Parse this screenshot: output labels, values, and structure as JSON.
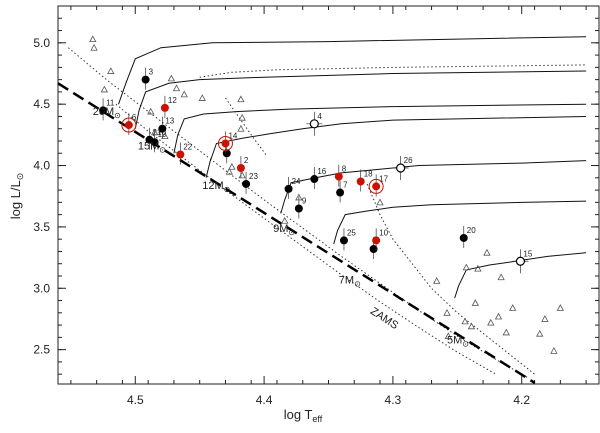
{
  "chart_data": {
    "type": "scatter",
    "xlabel": "log T",
    "xlabel_sub": "eff",
    "ylabel": "log L/L",
    "ylabel_sub": "⊙",
    "xlim": [
      4.56,
      4.14
    ],
    "ylim": [
      2.22,
      5.3
    ],
    "x_ticks": [
      4.5,
      4.4,
      4.3,
      4.2
    ],
    "x_tick_labels": [
      "4.5",
      "4.4",
      "4.3",
      "4.2"
    ],
    "y_ticks": [
      2.5,
      3.0,
      3.5,
      4.0,
      4.5,
      5.0
    ],
    "y_tick_labels": [
      "2.5",
      "3.0",
      "3.5",
      "4.0",
      "4.5",
      "5.0"
    ],
    "zams_label": "ZAMS",
    "mass_labels": [
      {
        "text": "20M",
        "sub": "⊙",
        "x": 4.533,
        "y": 4.41
      },
      {
        "text": "15M",
        "sub": "⊙",
        "x": 4.498,
        "y": 4.13
      },
      {
        "text": "12M",
        "sub": "⊙",
        "x": 4.448,
        "y": 3.81
      },
      {
        "text": "9M",
        "sub": "⊙",
        "x": 4.393,
        "y": 3.46
      },
      {
        "text": "7M",
        "sub": "⊙",
        "x": 4.342,
        "y": 3.04
      },
      {
        "text": "5M",
        "sub": "⊙",
        "x": 4.258,
        "y": 2.55
      }
    ],
    "series": [
      {
        "marker": "filled-black",
        "color": "#000000",
        "points": [
          {
            "id": "11",
            "x": 4.525,
            "y": 4.45
          },
          {
            "id": "3",
            "x": 4.492,
            "y": 4.7
          },
          {
            "id": "13",
            "x": 4.479,
            "y": 4.3
          },
          {
            "id": "21",
            "x": 4.489,
            "y": 4.21
          },
          {
            "id": "19",
            "x": 4.485,
            "y": 4.19
          },
          {
            "id": "",
            "x": 4.429,
            "y": 4.1
          },
          {
            "id": "23",
            "x": 4.414,
            "y": 3.85
          },
          {
            "id": "24",
            "x": 4.381,
            "y": 3.81
          },
          {
            "id": "16",
            "x": 4.361,
            "y": 3.89
          },
          {
            "id": "9",
            "x": 4.373,
            "y": 3.65
          },
          {
            "id": "7",
            "x": 4.341,
            "y": 3.78
          },
          {
            "id": "25",
            "x": 4.338,
            "y": 3.39
          },
          {
            "id": "",
            "x": 4.315,
            "y": 3.32
          },
          {
            "id": "20",
            "x": 4.245,
            "y": 3.41
          }
        ]
      },
      {
        "marker": "filled-red",
        "color": "#cc1100",
        "points": [
          {
            "id": "6",
            "x": 4.505,
            "y": 4.33
          },
          {
            "id": "12",
            "x": 4.477,
            "y": 4.47
          },
          {
            "id": "22",
            "x": 4.465,
            "y": 4.09
          },
          {
            "id": "14",
            "x": 4.43,
            "y": 4.18
          },
          {
            "id": "2",
            "x": 4.418,
            "y": 3.98
          },
          {
            "id": "8",
            "x": 4.342,
            "y": 3.91
          },
          {
            "id": "18",
            "x": 4.325,
            "y": 3.87
          },
          {
            "id": "17",
            "x": 4.313,
            "y": 3.83
          },
          {
            "id": "10",
            "x": 4.313,
            "y": 3.39
          }
        ]
      },
      {
        "marker": "ringed-red",
        "color": "#cc1100",
        "points": [
          {
            "id": "",
            "x": 4.505,
            "y": 4.33
          },
          {
            "id": "",
            "x": 4.43,
            "y": 4.18
          },
          {
            "id": "",
            "x": 4.313,
            "y": 3.83
          }
        ]
      },
      {
        "marker": "open-circle",
        "color": "#000000",
        "points": [
          {
            "id": "4",
            "x": 4.361,
            "y": 4.34
          },
          {
            "id": "26",
            "x": 4.294,
            "y": 3.98
          },
          {
            "id": "15",
            "x": 4.201,
            "y": 3.22
          }
        ]
      },
      {
        "marker": "triangle",
        "color": "#555555",
        "points": [
          {
            "x": 4.533,
            "y": 5.03
          },
          {
            "x": 4.532,
            "y": 4.96
          },
          {
            "x": 4.519,
            "y": 4.77
          },
          {
            "x": 4.524,
            "y": 4.62
          },
          {
            "x": 4.472,
            "y": 4.71
          },
          {
            "x": 4.468,
            "y": 4.63
          },
          {
            "x": 4.462,
            "y": 4.58
          },
          {
            "x": 4.448,
            "y": 4.55
          },
          {
            "x": 4.488,
            "y": 4.44
          },
          {
            "x": 4.485,
            "y": 4.27
          },
          {
            "x": 4.477,
            "y": 4.24
          },
          {
            "x": 4.417,
            "y": 4.39
          },
          {
            "x": 4.418,
            "y": 4.54
          },
          {
            "x": 4.418,
            "y": 4.3
          },
          {
            "x": 4.425,
            "y": 3.99
          },
          {
            "x": 4.427,
            "y": 3.95
          },
          {
            "x": 4.417,
            "y": 3.92
          },
          {
            "x": 4.373,
            "y": 3.74
          },
          {
            "x": 4.384,
            "y": 3.55
          },
          {
            "x": 4.31,
            "y": 3.7
          },
          {
            "x": 4.243,
            "y": 3.17
          },
          {
            "x": 4.234,
            "y": 3.16
          },
          {
            "x": 4.227,
            "y": 3.29
          },
          {
            "x": 4.216,
            "y": 3.09
          },
          {
            "x": 4.236,
            "y": 2.88
          },
          {
            "x": 4.207,
            "y": 2.84
          },
          {
            "x": 4.224,
            "y": 2.72
          },
          {
            "x": 4.218,
            "y": 2.77
          },
          {
            "x": 4.212,
            "y": 2.64
          },
          {
            "x": 4.182,
            "y": 2.75
          },
          {
            "x": 4.17,
            "y": 2.84
          },
          {
            "x": 4.266,
            "y": 3.06
          },
          {
            "x": 4.258,
            "y": 2.8
          },
          {
            "x": 4.244,
            "y": 2.73
          },
          {
            "x": 4.239,
            "y": 2.69
          },
          {
            "x": 4.257,
            "y": 2.61
          },
          {
            "x": 4.175,
            "y": 2.49
          },
          {
            "x": 4.186,
            "y": 2.63
          }
        ]
      }
    ],
    "zams": [
      [
        4.56,
        4.67
      ],
      [
        4.19,
        2.23
      ]
    ],
    "tracks_solid": [
      [
        [
          4.513,
          4.5
        ],
        [
          4.507,
          4.68
        ],
        [
          4.5,
          4.87
        ],
        [
          4.48,
          4.96
        ],
        [
          4.44,
          5.0
        ],
        [
          4.35,
          5.01
        ],
        [
          4.25,
          5.03
        ],
        [
          4.15,
          5.05
        ]
      ],
      [
        [
          4.5,
          4.3
        ],
        [
          4.497,
          4.45
        ],
        [
          4.492,
          4.6
        ],
        [
          4.474,
          4.67
        ],
        [
          4.45,
          4.7
        ],
        [
          4.4,
          4.72
        ],
        [
          4.3,
          4.75
        ],
        [
          4.15,
          4.77
        ]
      ],
      [
        [
          4.47,
          4.1
        ],
        [
          4.467,
          4.25
        ],
        [
          4.462,
          4.38
        ],
        [
          4.447,
          4.42
        ],
        [
          4.42,
          4.44
        ],
        [
          4.38,
          4.46
        ],
        [
          4.3,
          4.48
        ],
        [
          4.15,
          4.5
        ]
      ],
      [
        [
          4.445,
          3.9
        ],
        [
          4.442,
          4.03
        ],
        [
          4.437,
          4.18
        ],
        [
          4.418,
          4.22
        ],
        [
          4.395,
          4.26
        ],
        [
          4.37,
          4.3
        ],
        [
          4.34,
          4.34
        ],
        [
          4.3,
          4.37
        ],
        [
          4.15,
          4.4
        ]
      ],
      [
        [
          4.387,
          3.61
        ],
        [
          4.384,
          3.72
        ],
        [
          4.379,
          3.86
        ],
        [
          4.36,
          3.9
        ],
        [
          4.34,
          3.94
        ],
        [
          4.31,
          3.97
        ],
        [
          4.28,
          4.0
        ],
        [
          4.2,
          4.02
        ],
        [
          4.15,
          4.04
        ]
      ],
      [
        [
          4.346,
          3.36
        ],
        [
          4.343,
          3.47
        ],
        [
          4.337,
          3.6
        ],
        [
          4.32,
          3.63
        ],
        [
          4.3,
          3.66
        ],
        [
          4.27,
          3.68
        ],
        [
          4.2,
          3.7
        ],
        [
          4.15,
          3.71
        ]
      ],
      [
        [
          4.252,
          2.92
        ],
        [
          4.249,
          3.02
        ],
        [
          4.243,
          3.15
        ],
        [
          4.225,
          3.19
        ],
        [
          4.205,
          3.22
        ],
        [
          4.18,
          3.26
        ],
        [
          4.15,
          3.29
        ]
      ]
    ],
    "tracks_dotted": [
      [
        [
          4.552,
          4.96
        ],
        [
          4.52,
          4.68
        ],
        [
          4.49,
          4.44
        ],
        [
          4.46,
          4.2
        ],
        [
          4.43,
          3.96
        ],
        [
          4.4,
          3.72
        ],
        [
          4.37,
          3.49
        ],
        [
          4.34,
          3.26
        ],
        [
          4.31,
          3.04
        ],
        [
          4.28,
          2.82
        ],
        [
          4.25,
          2.61
        ],
        [
          4.22,
          2.42
        ],
        [
          4.195,
          2.27
        ]
      ],
      [
        [
          4.515,
          4.5
        ],
        [
          4.49,
          4.28
        ],
        [
          4.46,
          4.04
        ],
        [
          4.43,
          3.8
        ],
        [
          4.4,
          3.57
        ],
        [
          4.37,
          3.34
        ],
        [
          4.34,
          3.11
        ],
        [
          4.31,
          2.89
        ],
        [
          4.28,
          2.68
        ],
        [
          4.25,
          2.48
        ],
        [
          4.22,
          2.3
        ]
      ],
      [
        [
          4.45,
          4.72
        ],
        [
          4.425,
          4.76
        ],
        [
          4.39,
          4.78
        ],
        [
          4.3,
          4.8
        ],
        [
          4.15,
          4.82
        ]
      ],
      [
        [
          4.43,
          4.55
        ],
        [
          4.42,
          4.4
        ],
        [
          4.408,
          4.22
        ],
        [
          4.398,
          4.08
        ]
      ],
      [
        [
          4.32,
          3.85
        ],
        [
          4.31,
          3.6
        ],
        [
          4.3,
          3.4
        ],
        [
          4.285,
          3.2
        ],
        [
          4.27,
          3.0
        ],
        [
          4.25,
          2.8
        ],
        [
          4.22,
          2.55
        ],
        [
          4.19,
          2.3
        ]
      ]
    ]
  }
}
